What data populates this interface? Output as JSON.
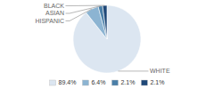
{
  "chart_data": {
    "type": "pie",
    "categories": [
      "WHITE",
      "HISPANIC",
      "ASIAN",
      "BLACK"
    ],
    "values": [
      89.4,
      6.4,
      2.1,
      2.1
    ],
    "value_labels": [
      "89.4%",
      "6.4%",
      "2.1%",
      "2.1%"
    ],
    "colors": [
      "#dce6f1",
      "#8cb4d2",
      "#4a7fa8",
      "#1f4878"
    ],
    "legend": "bottom"
  }
}
